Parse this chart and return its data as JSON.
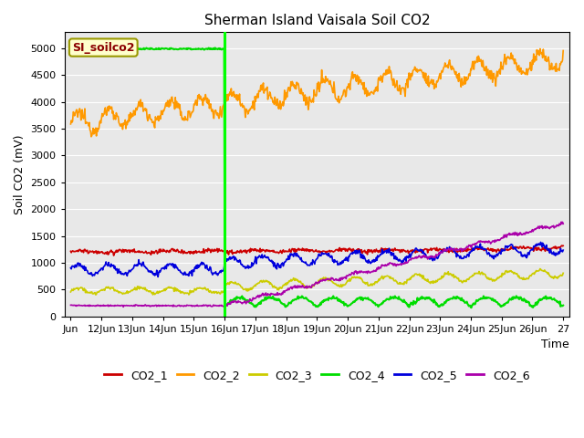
{
  "title": "Sherman Island Vaisala Soil CO2",
  "ylabel": "Soil CO2 (mV)",
  "xlabel": "Time",
  "annotation_label": "SI_soilco2",
  "ylim": [
    0,
    5200
  ],
  "yticks": [
    0,
    500,
    1000,
    1500,
    2000,
    2500,
    3000,
    3500,
    4000,
    4500,
    5000
  ],
  "xtick_labels": [
    "Jun",
    "12Jun",
    "13Jun",
    "14Jun",
    "15Jun",
    "16Jun",
    "17Jun",
    "18Jun",
    "19Jun",
    "20Jun",
    "21Jun",
    "22Jun",
    "23Jun",
    "24Jun",
    "25Jun",
    "26Jun",
    "27"
  ],
  "colors": {
    "CO2_1": "#cc0000",
    "CO2_2": "#ff9900",
    "CO2_3": "#cccc00",
    "CO2_4": "#00dd00",
    "CO2_5": "#0000dd",
    "CO2_6": "#aa00aa"
  },
  "vline_color": "#00ff00",
  "vline_x": 5,
  "background_color": "#e8e8e8",
  "grid_color": "#ffffff",
  "figsize": [
    6.4,
    4.8
  ],
  "dpi": 100
}
